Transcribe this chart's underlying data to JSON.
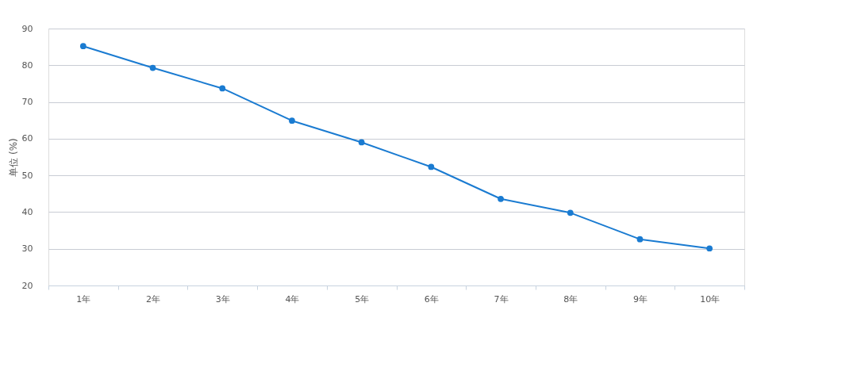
{
  "chart_data": {
    "type": "line",
    "ylabel": "单位 (%)",
    "categories": [
      "1年",
      "2年",
      "3年",
      "4年",
      "5年",
      "6年",
      "7年",
      "8年",
      "9年",
      "10年"
    ],
    "series": [
      {
        "color": "#1a7bd1",
        "values": [
          85.2,
          79.3,
          73.7,
          64.9,
          59.0,
          52.3,
          43.6,
          39.8,
          32.6,
          30.1
        ]
      }
    ],
    "ylim": [
      20,
      90
    ],
    "yticks": [
      20,
      30,
      40,
      50,
      60,
      70,
      80,
      90
    ],
    "grid": "y",
    "marker": "circle",
    "line_style": "solid"
  }
}
